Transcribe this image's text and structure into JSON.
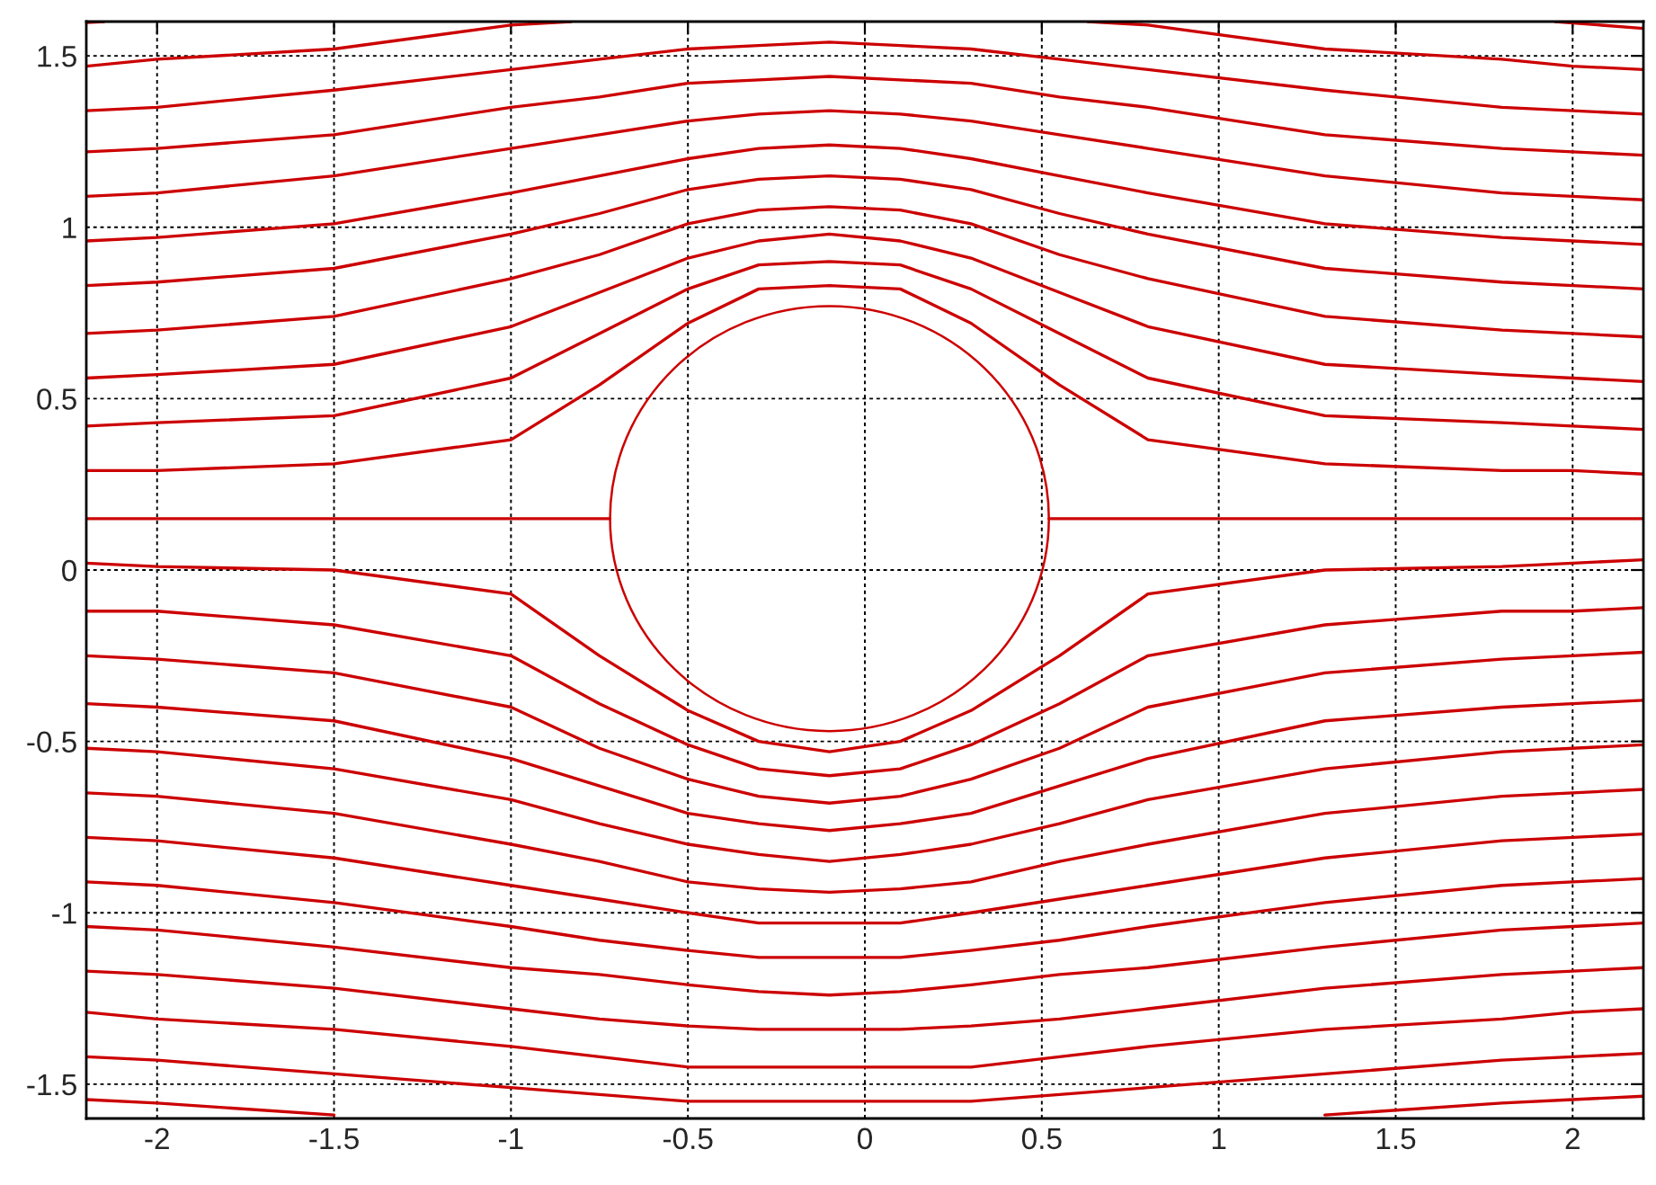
{
  "chart_data": {
    "type": "line",
    "x": [
      -2.2,
      -2,
      -1.5,
      -1,
      -0.75,
      -0.5,
      -0.3,
      -0.1,
      0.1,
      0.3,
      0.55,
      0.8,
      1.3,
      1.8,
      2.0,
      2.2
    ],
    "xlim": [
      -2.2,
      2.2
    ],
    "ylim": [
      -1.6,
      1.6
    ],
    "xticks": [
      -2,
      -1.5,
      -1,
      -0.5,
      0,
      0.5,
      1,
      1.5,
      2
    ],
    "yticks": [
      -1.5,
      -1,
      -0.5,
      0,
      0.5,
      1,
      1.5
    ],
    "grid": true,
    "legend": false,
    "series": [
      {
        "color": "#cc0000",
        "x": [
          -2.2,
          -2.15
        ],
        "values": [
          1.597,
          1.6
        ]
      },
      {
        "color": "#cc0000",
        "x": [
          1.95,
          2.2
        ],
        "values": [
          1.6,
          1.58
        ]
      },
      {
        "color": "#cc0000",
        "x": [
          -2.2,
          -2,
          -1.5,
          -1,
          -0.83
        ],
        "values": [
          1.47,
          1.49,
          1.52,
          1.59,
          1.6
        ]
      },
      {
        "color": "#cc0000",
        "x": [
          0.63,
          0.8,
          1.3,
          1.8,
          2.0,
          2.2
        ],
        "values": [
          1.6,
          1.59,
          1.52,
          1.49,
          1.47,
          1.46
        ]
      },
      {
        "color": "#cc0000",
        "values": [
          1.34,
          1.35,
          1.4,
          1.46,
          1.49,
          1.52,
          1.53,
          1.54,
          1.53,
          1.52,
          1.49,
          1.46,
          1.4,
          1.35,
          1.34,
          1.33
        ]
      },
      {
        "color": "#cc0000",
        "values": [
          1.22,
          1.23,
          1.27,
          1.35,
          1.38,
          1.42,
          1.43,
          1.44,
          1.43,
          1.42,
          1.38,
          1.35,
          1.27,
          1.23,
          1.22,
          1.21
        ]
      },
      {
        "color": "#cc0000",
        "values": [
          1.09,
          1.1,
          1.15,
          1.23,
          1.27,
          1.31,
          1.33,
          1.34,
          1.33,
          1.31,
          1.27,
          1.23,
          1.15,
          1.1,
          1.09,
          1.08
        ]
      },
      {
        "color": "#cc0000",
        "values": [
          0.96,
          0.97,
          1.01,
          1.1,
          1.15,
          1.2,
          1.23,
          1.24,
          1.23,
          1.2,
          1.15,
          1.1,
          1.01,
          0.97,
          0.96,
          0.95
        ]
      },
      {
        "color": "#cc0000",
        "values": [
          0.83,
          0.84,
          0.88,
          0.98,
          1.04,
          1.11,
          1.14,
          1.15,
          1.14,
          1.11,
          1.04,
          0.98,
          0.88,
          0.84,
          0.83,
          0.82
        ]
      },
      {
        "color": "#cc0000",
        "values": [
          0.69,
          0.7,
          0.74,
          0.85,
          0.92,
          1.01,
          1.05,
          1.06,
          1.05,
          1.01,
          0.92,
          0.85,
          0.74,
          0.7,
          0.69,
          0.68
        ]
      },
      {
        "color": "#cc0000",
        "values": [
          0.56,
          0.57,
          0.6,
          0.71,
          0.81,
          0.91,
          0.96,
          0.98,
          0.96,
          0.91,
          0.81,
          0.71,
          0.6,
          0.57,
          0.56,
          0.55
        ]
      },
      {
        "color": "#cc0000",
        "values": [
          0.42,
          0.43,
          0.45,
          0.56,
          0.69,
          0.82,
          0.89,
          0.9,
          0.89,
          0.82,
          0.69,
          0.56,
          0.45,
          0.43,
          0.42,
          0.41
        ]
      },
      {
        "color": "#cc0000",
        "values": [
          0.29,
          0.29,
          0.31,
          0.38,
          0.54,
          0.72,
          0.82,
          0.83,
          0.82,
          0.72,
          0.54,
          0.38,
          0.31,
          0.29,
          0.29,
          0.28
        ]
      },
      {
        "color": "#cc0000",
        "x": [
          -2.2,
          -0.72
        ],
        "values": [
          0.15,
          0.15
        ]
      },
      {
        "color": "#cc0000",
        "x": [
          0.52,
          2.2
        ],
        "values": [
          0.15,
          0.15
        ]
      },
      {
        "color": "#cc0000",
        "values": [
          0.02,
          0.01,
          0.0,
          -0.07,
          -0.25,
          -0.41,
          -0.5,
          -0.53,
          -0.5,
          -0.41,
          -0.25,
          -0.07,
          0.0,
          0.01,
          0.02,
          0.03
        ]
      },
      {
        "color": "#cc0000",
        "values": [
          -0.12,
          -0.12,
          -0.16,
          -0.25,
          -0.39,
          -0.51,
          -0.58,
          -0.6,
          -0.58,
          -0.51,
          -0.39,
          -0.25,
          -0.16,
          -0.12,
          -0.12,
          -0.11
        ]
      },
      {
        "color": "#cc0000",
        "values": [
          -0.25,
          -0.26,
          -0.3,
          -0.4,
          -0.52,
          -0.61,
          -0.66,
          -0.68,
          -0.66,
          -0.61,
          -0.52,
          -0.4,
          -0.3,
          -0.26,
          -0.25,
          -0.24
        ]
      },
      {
        "color": "#cc0000",
        "values": [
          -0.39,
          -0.4,
          -0.44,
          -0.55,
          -0.63,
          -0.71,
          -0.74,
          -0.76,
          -0.74,
          -0.71,
          -0.63,
          -0.55,
          -0.44,
          -0.4,
          -0.39,
          -0.38
        ]
      },
      {
        "color": "#cc0000",
        "values": [
          -0.52,
          -0.53,
          -0.58,
          -0.67,
          -0.74,
          -0.8,
          -0.83,
          -0.85,
          -0.83,
          -0.8,
          -0.74,
          -0.67,
          -0.58,
          -0.53,
          -0.52,
          -0.51
        ]
      },
      {
        "color": "#cc0000",
        "values": [
          -0.65,
          -0.66,
          -0.71,
          -0.8,
          -0.85,
          -0.91,
          -0.93,
          -0.94,
          -0.93,
          -0.91,
          -0.85,
          -0.8,
          -0.71,
          -0.66,
          -0.65,
          -0.64
        ]
      },
      {
        "color": "#cc0000",
        "values": [
          -0.78,
          -0.79,
          -0.84,
          -0.92,
          -0.96,
          -1.0,
          -1.03,
          -1.03,
          -1.03,
          -1.0,
          -0.96,
          -0.92,
          -0.84,
          -0.79,
          -0.78,
          -0.77
        ]
      },
      {
        "color": "#cc0000",
        "values": [
          -0.91,
          -0.92,
          -0.97,
          -1.04,
          -1.08,
          -1.11,
          -1.13,
          -1.13,
          -1.13,
          -1.11,
          -1.08,
          -1.04,
          -0.97,
          -0.92,
          -0.91,
          -0.9
        ]
      },
      {
        "color": "#cc0000",
        "values": [
          -1.04,
          -1.05,
          -1.1,
          -1.16,
          -1.18,
          -1.21,
          -1.23,
          -1.24,
          -1.23,
          -1.21,
          -1.18,
          -1.16,
          -1.1,
          -1.05,
          -1.04,
          -1.03
        ]
      },
      {
        "color": "#cc0000",
        "values": [
          -1.17,
          -1.18,
          -1.22,
          -1.28,
          -1.31,
          -1.33,
          -1.34,
          -1.34,
          -1.34,
          -1.33,
          -1.31,
          -1.28,
          -1.22,
          -1.18,
          -1.17,
          -1.16
        ]
      },
      {
        "color": "#cc0000",
        "values": [
          -1.29,
          -1.31,
          -1.34,
          -1.39,
          -1.42,
          -1.45,
          -1.45,
          -1.45,
          -1.45,
          -1.45,
          -1.42,
          -1.39,
          -1.34,
          -1.31,
          -1.29,
          -1.28
        ]
      },
      {
        "color": "#cc0000",
        "values": [
          -1.42,
          -1.43,
          -1.47,
          -1.51,
          -1.53,
          -1.55,
          -1.55,
          -1.55,
          -1.55,
          -1.55,
          -1.53,
          -1.51,
          -1.47,
          -1.43,
          -1.42,
          -1.41
        ]
      },
      {
        "color": "#cc0000",
        "x": [
          -2.2,
          -2,
          -1.5
        ],
        "values": [
          -1.545,
          -1.555,
          -1.59
        ]
      },
      {
        "color": "#cc0000",
        "x": [
          1.3,
          1.8,
          2.0,
          2.2
        ],
        "values": [
          -1.59,
          -1.555,
          -1.545,
          -1.535
        ]
      }
    ]
  }
}
